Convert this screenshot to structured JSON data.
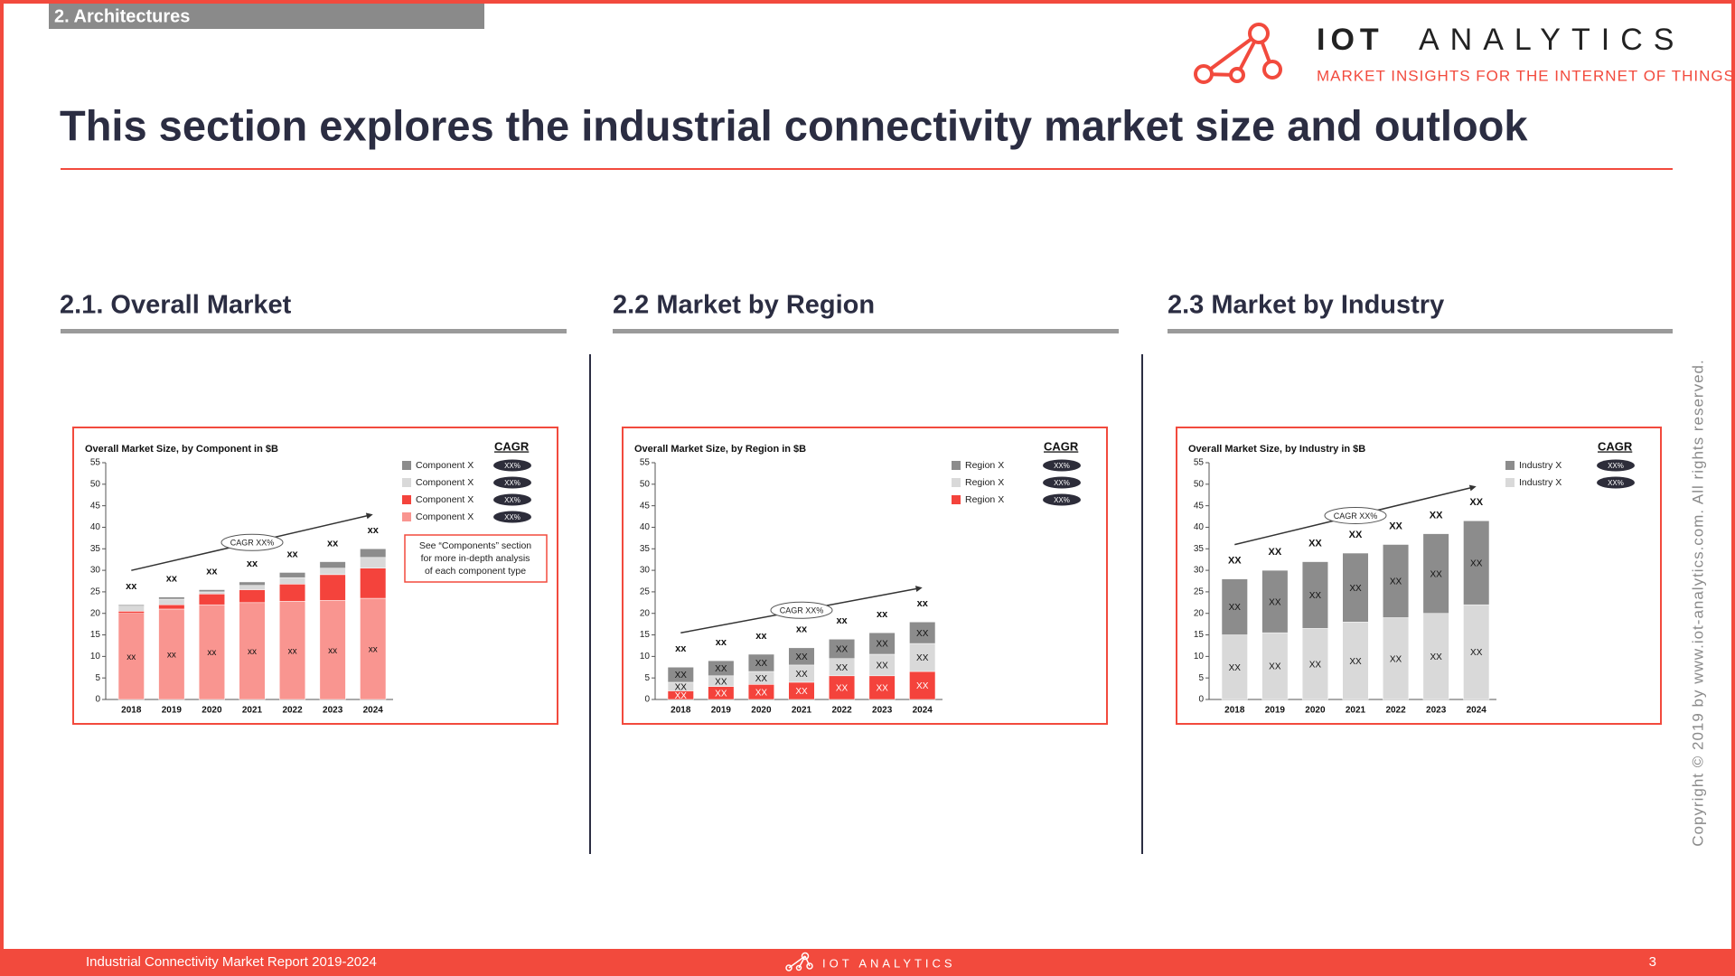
{
  "header": {
    "section_tag": "2. Architectures",
    "logo_name": "IOT",
    "logo_suffix": "ANALYTICS",
    "tagline": "MARKET INSIGHTS FOR THE INTERNET OF THINGS",
    "title": "This section explores the industrial connectivity market size and outlook"
  },
  "sections": [
    "2.1. Overall Market",
    "2.2 Market by Region",
    "2.3 Market by Industry"
  ],
  "copyright": "Copyright © 2019 by www.iot-analytics.com. All rights reserved.",
  "footer": {
    "report": "Industrial Connectivity Market Report 2019-2024",
    "logo": "IOT ANALYTICS",
    "page": "3"
  },
  "chart_data": [
    {
      "type": "bar",
      "stacked": true,
      "title": "Overall Market Size, by Component in $B",
      "categories": [
        "2018",
        "2019",
        "2020",
        "2021",
        "2022",
        "2023",
        "2024"
      ],
      "series": [
        {
          "name": "Component X",
          "color": "#f99590",
          "values": [
            20,
            21,
            22,
            22.5,
            22.8,
            23,
            23.5
          ],
          "value_labels": [
            "xx",
            "xx",
            "xx",
            "xx",
            "xx",
            "xx",
            "xx"
          ],
          "cagr_label": "XX%"
        },
        {
          "name": "Component X",
          "color": "#f4433c",
          "values": [
            0.5,
            1,
            2.5,
            3,
            4,
            6,
            7
          ],
          "cagr_label": "XX%"
        },
        {
          "name": "Component X",
          "color": "#d9d9d9",
          "values": [
            1.2,
            1.3,
            0.5,
            1,
            1.5,
            1.5,
            2.5
          ],
          "cagr_label": "XX%"
        },
        {
          "name": "Component X",
          "color": "#8c8c8c",
          "values": [
            0.3,
            0.5,
            0.5,
            0.8,
            1.2,
            1.5,
            2
          ],
          "cagr_label": "XX%"
        }
      ],
      "total_labels": [
        "xx",
        "xx",
        "xx",
        "xx",
        "xx",
        "xx",
        "xx"
      ],
      "ylim": [
        0,
        55
      ],
      "yticks": [
        0,
        5,
        10,
        15,
        20,
        25,
        30,
        35,
        40,
        45,
        50,
        55
      ],
      "legend_title": "CAGR",
      "annotation": "CAGR XX%",
      "note": [
        "See “Components” section",
        "for more in-depth analysis",
        "of each component type"
      ]
    },
    {
      "type": "bar",
      "stacked": true,
      "title": "Overall Market Size, by Region in $B",
      "categories": [
        "2018",
        "2019",
        "2020",
        "2021",
        "2022",
        "2023",
        "2024"
      ],
      "series": [
        {
          "name": "Region X",
          "color": "#f4433c",
          "values": [
            2,
            3,
            3.5,
            4,
            5.5,
            5.5,
            6.5
          ],
          "value_labels": [
            "XX",
            "XX",
            "XX",
            "XX",
            "XX",
            "XX",
            "XX"
          ],
          "cagr_label": "XX%"
        },
        {
          "name": "Region X",
          "color": "#d9d9d9",
          "values": [
            2,
            2.5,
            3,
            4,
            4,
            5,
            6.5
          ],
          "value_labels": [
            "XX",
            "XX",
            "XX",
            "XX",
            "XX",
            "XX",
            "XX"
          ],
          "cagr_label": "XX%"
        },
        {
          "name": "Region X",
          "color": "#8c8c8c",
          "values": [
            3.5,
            3.5,
            4,
            4,
            4.5,
            5,
            5
          ],
          "value_labels": [
            "XX",
            "XX",
            "XX",
            "XX",
            "XX",
            "XX",
            "XX"
          ],
          "cagr_label": "XX%"
        }
      ],
      "total_labels": [
        "xx",
        "xx",
        "xx",
        "xx",
        "xx",
        "xx",
        "xx"
      ],
      "ylim": [
        0,
        55
      ],
      "yticks": [
        0,
        5,
        10,
        15,
        20,
        25,
        30,
        35,
        40,
        45,
        50,
        55
      ],
      "legend_title": "CAGR",
      "annotation": "CAGR XX%"
    },
    {
      "type": "bar",
      "stacked": true,
      "title": "Overall Market Size, by Industry in $B",
      "categories": [
        "2018",
        "2019",
        "2020",
        "2021",
        "2022",
        "2023",
        "2024"
      ],
      "series": [
        {
          "name": "Industry X",
          "color": "#d9d9d9",
          "values": [
            15,
            15.5,
            16.5,
            18,
            19,
            20,
            22
          ],
          "value_labels": [
            "XX",
            "XX",
            "XX",
            "XX",
            "XX",
            "XX",
            "XX"
          ],
          "cagr_label": "XX%"
        },
        {
          "name": "Industry X",
          "color": "#8c8c8c",
          "values": [
            13,
            14.5,
            15.5,
            16,
            17,
            18.5,
            19.5
          ],
          "value_labels": [
            "XX",
            "XX",
            "XX",
            "XX",
            "XX",
            "XX",
            "XX"
          ],
          "cagr_label": "XX%"
        }
      ],
      "total_labels": [
        "XX",
        "XX",
        "XX",
        "XX",
        "XX",
        "XX",
        "XX"
      ],
      "ylim": [
        0,
        55
      ],
      "yticks": [
        0,
        5,
        10,
        15,
        20,
        25,
        30,
        35,
        40,
        45,
        50,
        55
      ],
      "legend_title": "CAGR",
      "annotation": "CAGR XX%"
    }
  ]
}
